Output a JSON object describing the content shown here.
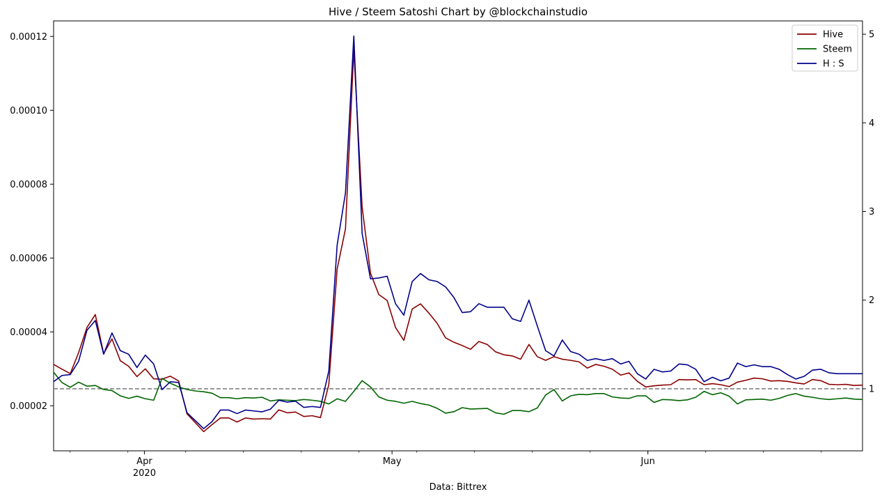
{
  "chart_data": {
    "type": "line",
    "title": "Hive / Steem Satoshi Chart by @blockchainstudio",
    "xlabel": "Data: Bittrex",
    "x_start": "2020-03-21",
    "x_end": "2020-06-27",
    "x_ticks": [
      {
        "date": "2020-04-01",
        "label": "Apr",
        "sublabel": "2020"
      },
      {
        "date": "2020-05-01",
        "label": "May",
        "sublabel": ""
      },
      {
        "date": "2020-06-01",
        "label": "Jun",
        "sublabel": ""
      }
    ],
    "left_axis": {
      "ylim": [
        7.8e-06,
        0.0001242
      ],
      "ticks": [
        "0.00002",
        "0.00004",
        "0.00006",
        "0.00008",
        "0.00010",
        "0.00012"
      ]
    },
    "right_axis": {
      "ylim": [
        0.3,
        5.15
      ],
      "ticks": [
        "1",
        "2",
        "3",
        "4",
        "5"
      ]
    },
    "reference_line": {
      "axis": "right",
      "value": 1,
      "style": "dashed",
      "color": "#808080"
    },
    "legend": {
      "position": "top-right"
    },
    "series": [
      {
        "name": "Hive",
        "axis": "left",
        "color": "#8b0000",
        "values": [
          3.12e-05,
          2.99e-05,
          2.87e-05,
          3.44e-05,
          4.12e-05,
          4.47e-05,
          3.41e-05,
          3.81e-05,
          3.22e-05,
          3.07e-05,
          2.79e-05,
          3e-05,
          2.73e-05,
          2.72e-05,
          2.8e-05,
          2.67e-05,
          1.78e-05,
          1.54e-05,
          1.3e-05,
          1.49e-05,
          1.67e-05,
          1.67e-05,
          1.56e-05,
          1.67e-05,
          1.64e-05,
          1.65e-05,
          1.64e-05,
          1.89e-05,
          1.81e-05,
          1.83e-05,
          1.71e-05,
          1.73e-05,
          1.68e-05,
          2.57e-05,
          5.7e-05,
          6.79e-05,
          0.0001164,
          7.37e-05,
          5.59e-05,
          5.01e-05,
          4.85e-05,
          4.12e-05,
          3.77e-05,
          4.62e-05,
          4.76e-05,
          4.51e-05,
          4.23e-05,
          3.84e-05,
          3.72e-05,
          3.63e-05,
          3.53e-05,
          3.74e-05,
          3.66e-05,
          3.46e-05,
          3.38e-05,
          3.35e-05,
          3.26e-05,
          3.66e-05,
          3.33e-05,
          3.23e-05,
          3.33e-05,
          3.26e-05,
          3.23e-05,
          3.19e-05,
          3.02e-05,
          3.12e-05,
          3.07e-05,
          2.99e-05,
          2.83e-05,
          2.89e-05,
          2.66e-05,
          2.51e-05,
          2.54e-05,
          2.56e-05,
          2.57e-05,
          2.71e-05,
          2.7e-05,
          2.71e-05,
          2.57e-05,
          2.6e-05,
          2.57e-05,
          2.52e-05,
          2.64e-05,
          2.69e-05,
          2.75e-05,
          2.73e-05,
          2.67e-05,
          2.68e-05,
          2.66e-05,
          2.62e-05,
          2.59e-05,
          2.71e-05,
          2.68e-05,
          2.58e-05,
          2.57e-05,
          2.58e-05,
          2.55e-05,
          2.56e-05
        ]
      },
      {
        "name": "Steem",
        "axis": "left",
        "color": "#006400",
        "values": [
          2.91e-05,
          2.63e-05,
          2.5e-05,
          2.64e-05,
          2.53e-05,
          2.55e-05,
          2.44e-05,
          2.41e-05,
          2.27e-05,
          2.2e-05,
          2.26e-05,
          2.19e-05,
          2.15e-05,
          2.74e-05,
          2.61e-05,
          2.51e-05,
          2.44e-05,
          2.4e-05,
          2.38e-05,
          2.34e-05,
          2.22e-05,
          2.22e-05,
          2.19e-05,
          2.22e-05,
          2.21e-05,
          2.23e-05,
          2.13e-05,
          2.16e-05,
          2.15e-05,
          2.14e-05,
          2.17e-05,
          2.15e-05,
          2.12e-05,
          2.05e-05,
          2.19e-05,
          2.12e-05,
          2.39e-05,
          2.68e-05,
          2.51e-05,
          2.24e-05,
          2.15e-05,
          2.12e-05,
          2.07e-05,
          2.12e-05,
          2.06e-05,
          2.02e-05,
          1.93e-05,
          1.8e-05,
          1.84e-05,
          1.95e-05,
          1.91e-05,
          1.92e-05,
          1.93e-05,
          1.81e-05,
          1.77e-05,
          1.87e-05,
          1.87e-05,
          1.84e-05,
          1.94e-05,
          2.29e-05,
          2.44e-05,
          2.13e-05,
          2.27e-05,
          2.31e-05,
          2.3e-05,
          2.33e-05,
          2.33e-05,
          2.24e-05,
          2.21e-05,
          2.2e-05,
          2.27e-05,
          2.27e-05,
          2.09e-05,
          2.17e-05,
          2.16e-05,
          2.14e-05,
          2.16e-05,
          2.23e-05,
          2.39e-05,
          2.3e-05,
          2.35e-05,
          2.26e-05,
          2.05e-05,
          2.16e-05,
          2.17e-05,
          2.18e-05,
          2.15e-05,
          2.2e-05,
          2.28e-05,
          2.33e-05,
          2.26e-05,
          2.23e-05,
          2.19e-05,
          2.17e-05,
          2.19e-05,
          2.21e-05,
          2.18e-05,
          2.17e-05
        ]
      },
      {
        "name": "H : S",
        "axis": "right",
        "color": "#00008b",
        "values": [
          1.08,
          1.15,
          1.16,
          1.31,
          1.66,
          1.77,
          1.39,
          1.63,
          1.43,
          1.39,
          1.24,
          1.38,
          1.28,
          0.99,
          1.08,
          1.07,
          0.73,
          0.64,
          0.55,
          0.63,
          0.76,
          0.76,
          0.72,
          0.76,
          0.75,
          0.74,
          0.77,
          0.87,
          0.85,
          0.86,
          0.79,
          0.8,
          0.79,
          1.2,
          2.62,
          3.21,
          4.98,
          2.75,
          2.24,
          2.25,
          2.27,
          1.96,
          1.83,
          2.21,
          2.3,
          2.23,
          2.21,
          2.15,
          2.03,
          1.86,
          1.87,
          1.96,
          1.92,
          1.92,
          1.92,
          1.79,
          1.76,
          2.0,
          1.71,
          1.43,
          1.37,
          1.55,
          1.42,
          1.39,
          1.32,
          1.34,
          1.32,
          1.34,
          1.28,
          1.31,
          1.17,
          1.11,
          1.22,
          1.19,
          1.2,
          1.28,
          1.27,
          1.22,
          1.08,
          1.13,
          1.09,
          1.12,
          1.29,
          1.25,
          1.27,
          1.25,
          1.25,
          1.22,
          1.16,
          1.11,
          1.14,
          1.21,
          1.22,
          1.18,
          1.17,
          1.17,
          1.17,
          1.17
        ]
      }
    ]
  }
}
